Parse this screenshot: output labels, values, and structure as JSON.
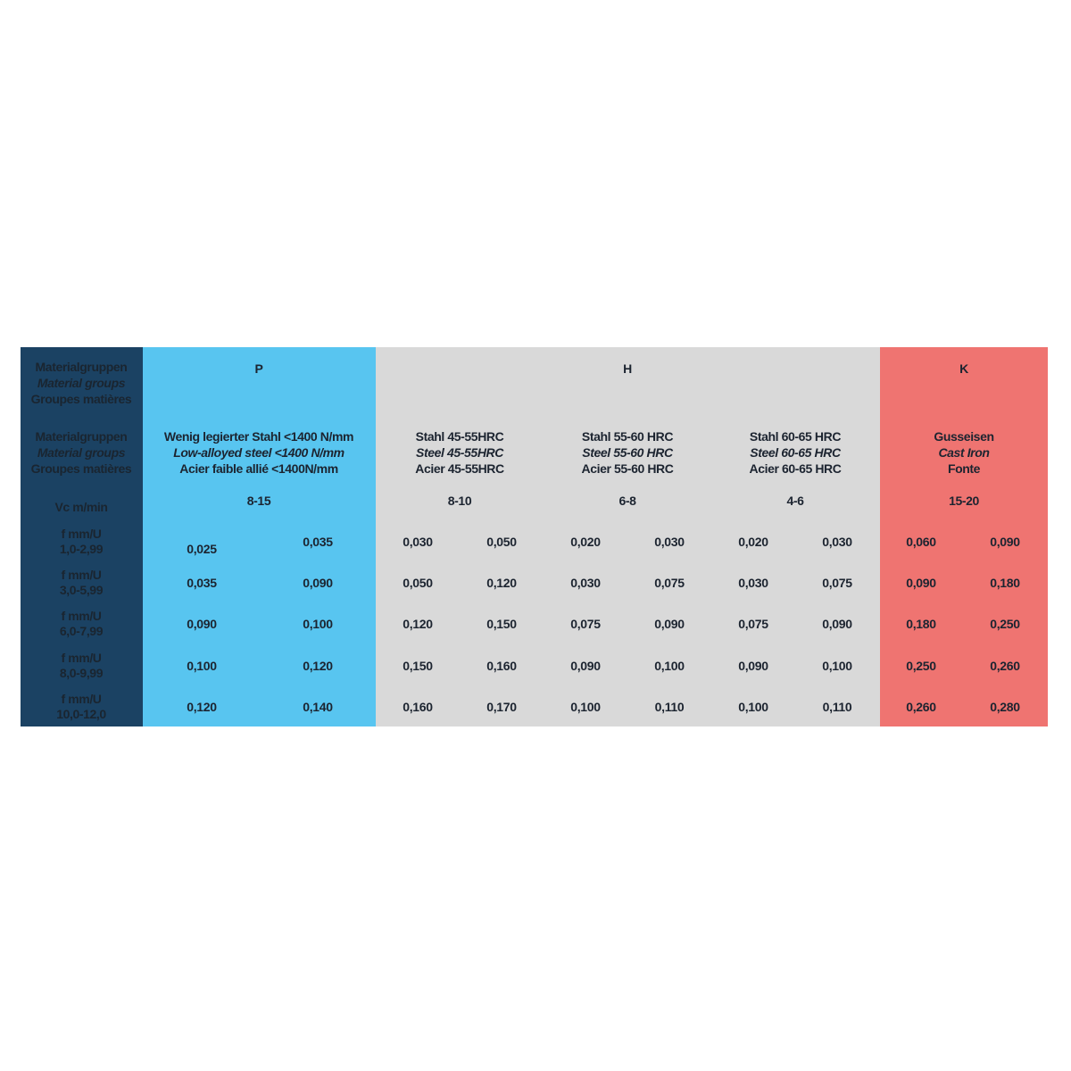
{
  "colors": {
    "label_column": "#1b4263",
    "group_p": "#58c5f0",
    "group_h": "#d9d9d9",
    "group_k": "#ef7471",
    "text": "#1c2430"
  },
  "labels": {
    "group_header": [
      "Materialgruppen",
      "Material groups",
      "Groupes matières"
    ],
    "material_header": [
      "Materialgruppen",
      "Material groups",
      "Groupes matières"
    ],
    "vc": "Vc m/min",
    "feed_rows": [
      [
        "f mm/U",
        "1,0-2,99"
      ],
      [
        "f mm/U",
        "3,0-5,99"
      ],
      [
        "f mm/U",
        "6,0-7,99"
      ],
      [
        "f mm/U",
        "8,0-9,99"
      ],
      [
        "f mm/U",
        "10,0-12,0"
      ]
    ]
  },
  "groups": [
    {
      "code": "P"
    },
    {
      "code": "H"
    },
    {
      "code": "K"
    }
  ],
  "materials": [
    {
      "group": "P",
      "names": [
        "Wenig legierter Stahl <1400 N/mm",
        "Low-alloyed steel  <1400 N/mm",
        "Acier faible allié <1400N/mm"
      ],
      "vc": "8-15",
      "values": [
        [
          "0,025",
          "0,035"
        ],
        [
          "0,035",
          "0,090"
        ],
        [
          "0,090",
          "0,100"
        ],
        [
          "0,100",
          "0,120"
        ],
        [
          "0,120",
          "0,140"
        ]
      ]
    },
    {
      "group": "H",
      "names": [
        "Stahl 45-55HRC",
        "Steel 45-55HRC",
        "Acier 45-55HRC"
      ],
      "vc": "8-10",
      "values": [
        [
          "0,030",
          "0,050"
        ],
        [
          "0,050",
          "0,120"
        ],
        [
          "0,120",
          "0,150"
        ],
        [
          "0,150",
          "0,160"
        ],
        [
          "0,160",
          "0,170"
        ]
      ]
    },
    {
      "group": "H",
      "names": [
        "Stahl 55-60 HRC",
        "Steel 55-60 HRC",
        "Acier 55-60  HRC"
      ],
      "vc": "6-8",
      "values": [
        [
          "0,020",
          "0,030"
        ],
        [
          "0,030",
          "0,075"
        ],
        [
          "0,075",
          "0,090"
        ],
        [
          "0,090",
          "0,100"
        ],
        [
          "0,100",
          "0,110"
        ]
      ]
    },
    {
      "group": "H",
      "names": [
        "Stahl 60-65 HRC",
        "Steel 60-65 HRC",
        "Acier 60-65  HRC"
      ],
      "vc": "4-6",
      "values": [
        [
          "0,020",
          "0,030"
        ],
        [
          "0,030",
          "0,075"
        ],
        [
          "0,075",
          "0,090"
        ],
        [
          "0,090",
          "0,100"
        ],
        [
          "0,100",
          "0,110"
        ]
      ]
    },
    {
      "group": "K",
      "names": [
        "Gusseisen",
        "Cast Iron",
        "Fonte"
      ],
      "vc": "15-20",
      "values": [
        [
          "0,060",
          "0,090"
        ],
        [
          "0,090",
          "0,180"
        ],
        [
          "0,180",
          "0,250"
        ],
        [
          "0,250",
          "0,260"
        ],
        [
          "0,260",
          "0,280"
        ]
      ]
    }
  ]
}
